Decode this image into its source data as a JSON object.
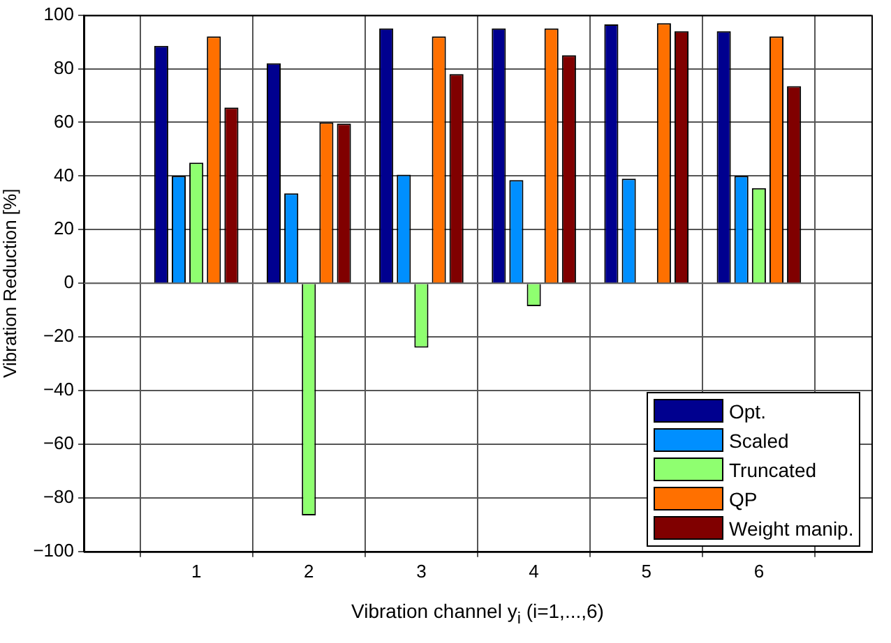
{
  "chart_data": {
    "type": "bar",
    "xlabel": "Vibration channel y$_{i}$ (i=1,...,6)",
    "ylabel": "Vibration Reduction [%]",
    "x": [
      1,
      2,
      3,
      4,
      5,
      6
    ],
    "xlim": [
      0,
      7
    ],
    "xticks": [
      1,
      2,
      3,
      4,
      5,
      6
    ],
    "ylim": [
      -100,
      100
    ],
    "yticks": [
      -100,
      -80,
      -60,
      -40,
      -20,
      0,
      20,
      40,
      60,
      80,
      100
    ],
    "grid": true,
    "legend": "bottom right",
    "series": [
      {
        "name": "Opt.",
        "color": "#00008f",
        "values": [
          88.5,
          82,
          95,
          95,
          96.5,
          94
        ]
      },
      {
        "name": "Scaled",
        "color": "#008fff",
        "values": [
          40,
          33.5,
          40.5,
          38.5,
          39,
          40
        ]
      },
      {
        "name": "Truncated",
        "color": "#8fff70",
        "values": [
          45,
          -86.5,
          -24,
          -8.5,
          0,
          35.5
        ]
      },
      {
        "name": "QP",
        "color": "#ff7000",
        "values": [
          92,
          60,
          92,
          95,
          97,
          92
        ]
      },
      {
        "name": "Weight manip.",
        "color": "#800000",
        "values": [
          65.5,
          59.5,
          78,
          85,
          94,
          73.5
        ]
      }
    ]
  }
}
